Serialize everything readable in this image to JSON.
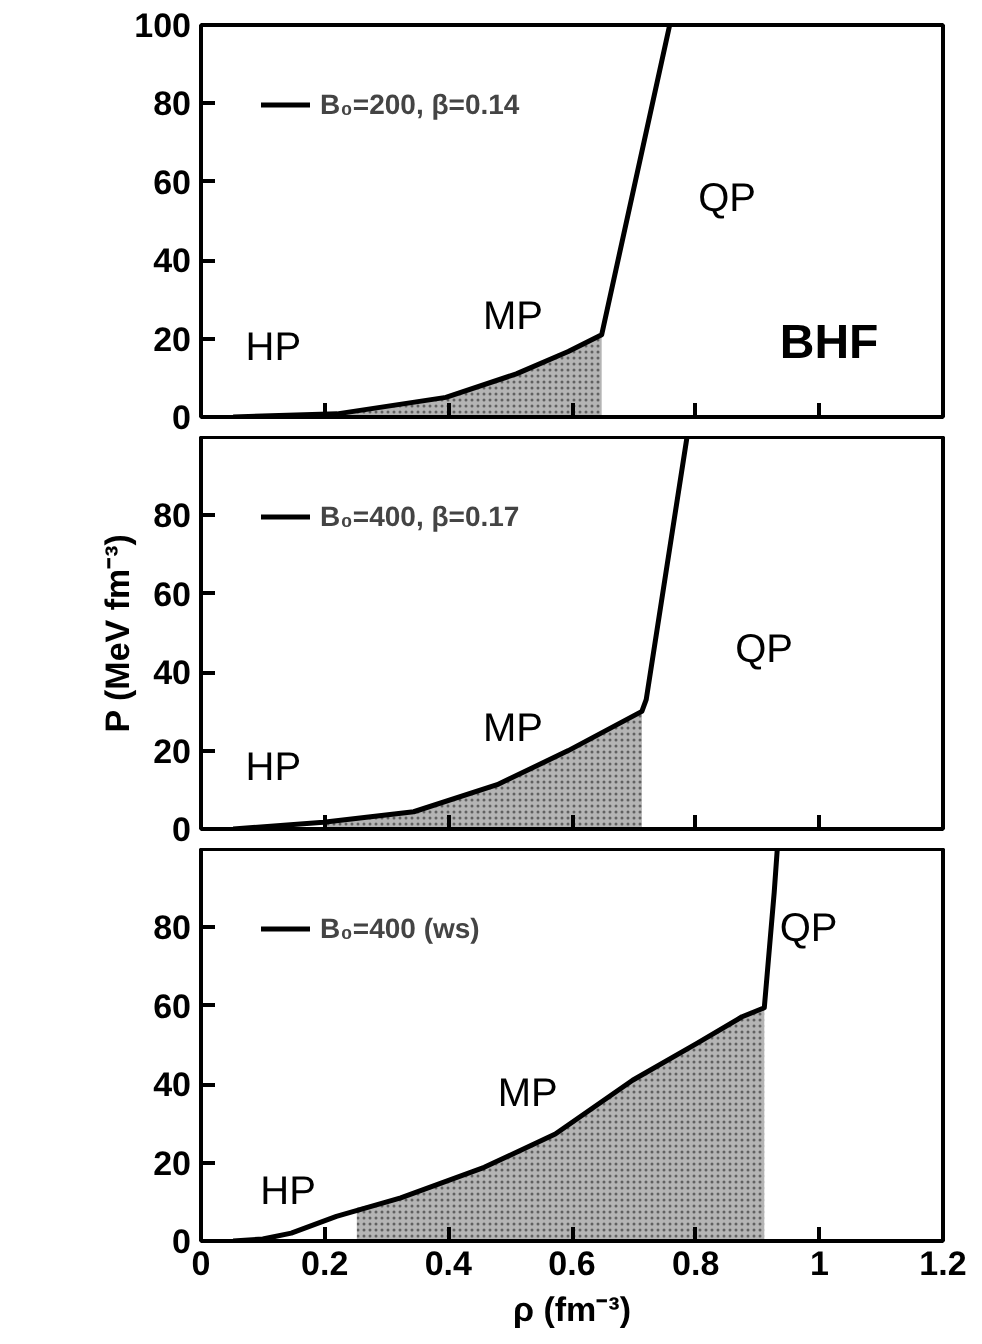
{
  "chart_data": [
    {
      "type": "line",
      "xlim": [
        0,
        1.2
      ],
      "ylim": [
        0,
        100
      ],
      "xticks": [
        0,
        0.2,
        0.4,
        0.6,
        0.8,
        1,
        1.2
      ],
      "yticks": [
        0,
        20,
        40,
        60,
        80,
        100
      ],
      "tick_labels": "y",
      "legend": "top left",
      "grid": false,
      "series": [
        {
          "type": "area",
          "color": "#b4b4b4",
          "x": [
            0.23,
            0.396,
            0.51,
            0.594,
            0.648
          ],
          "values": [
            1,
            5,
            11,
            16.7,
            21
          ]
        },
        {
          "name": "B₀=200, β=0.14",
          "color": "#000000",
          "x": [
            0.052,
            0.22,
            0.396,
            0.51,
            0.594,
            0.648,
            0.758
          ],
          "values": [
            0,
            0.8,
            5,
            11,
            16.7,
            21,
            100
          ]
        }
      ],
      "annotations": [
        "HP",
        "MP",
        "QP",
        "BHF"
      ]
    },
    {
      "type": "line",
      "xlim": [
        0,
        1.2
      ],
      "ylim": [
        0,
        100
      ],
      "xticks": [
        0,
        0.2,
        0.4,
        0.6,
        0.8,
        1,
        1.2
      ],
      "yticks": [
        0,
        20,
        40,
        60,
        80
      ],
      "tick_labels": "y",
      "legend": "top left",
      "grid": false,
      "ylabel": "P (MeV fm⁻³)",
      "series": [
        {
          "type": "area",
          "color": "#b4b4b4",
          "x": [
            0.2,
            0.344,
            0.479,
            0.594,
            0.713
          ],
          "values": [
            1.7,
            4.4,
            11.3,
            20,
            30
          ]
        },
        {
          "name": "B₀=400, β=0.17",
          "color": "#000000",
          "x": [
            0.052,
            0.198,
            0.344,
            0.479,
            0.594,
            0.713,
            0.72,
            0.786
          ],
          "values": [
            0,
            1.7,
            4.4,
            11.3,
            20,
            30,
            33,
            100
          ]
        }
      ],
      "annotations": [
        "HP",
        "MP",
        "QP"
      ]
    },
    {
      "type": "line",
      "xlim": [
        0,
        1.2
      ],
      "ylim": [
        0,
        100
      ],
      "xticks": [
        0,
        0.2,
        0.4,
        0.6,
        0.8,
        1,
        1.2
      ],
      "yticks": [
        0,
        20,
        40,
        60,
        80
      ],
      "legend": "top left",
      "grid": false,
      "xlabel": "ρ (fm⁻³)",
      "series": [
        {
          "type": "area",
          "color": "#b4b4b4",
          "x": [
            0.252,
            0.323,
            0.458,
            0.573,
            0.698,
            0.802,
            0.875,
            0.911
          ],
          "values": [
            8.5,
            11,
            18.8,
            27.3,
            41,
            50.4,
            57.2,
            59.5
          ]
        },
        {
          "name": "B₀=400 (ws)",
          "color": "#000000",
          "x": [
            0.052,
            0.1,
            0.146,
            0.219,
            0.323,
            0.458,
            0.573,
            0.698,
            0.802,
            0.875,
            0.911,
            0.927,
            0.932
          ],
          "values": [
            0,
            0.5,
            2,
            6.3,
            11,
            18.8,
            27.3,
            41,
            50.4,
            57.2,
            59.5,
            88.9,
            100
          ]
        }
      ],
      "annotations": [
        "HP",
        "MP",
        "QP"
      ]
    }
  ]
}
